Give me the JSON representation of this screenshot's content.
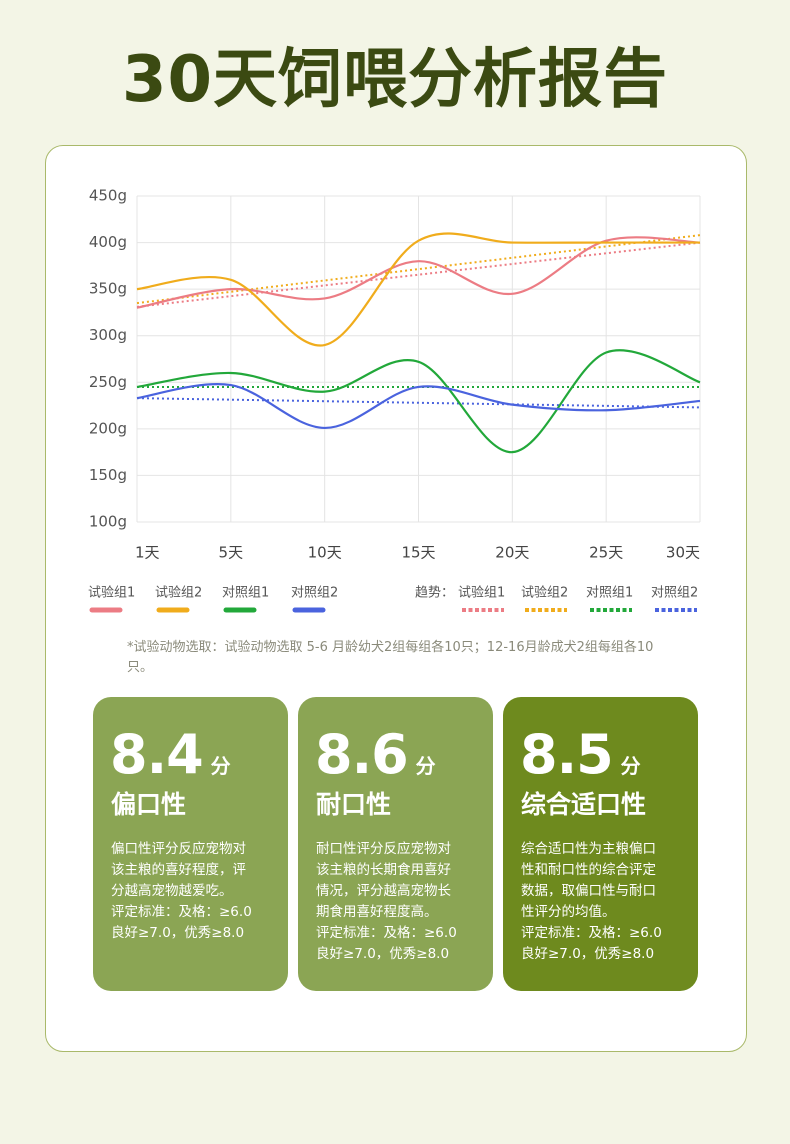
{
  "title": "30天饲喂分析报告",
  "chart_data": {
    "type": "line",
    "categories": [
      "1天",
      "5天",
      "10天",
      "15天",
      "20天",
      "25天",
      "30天"
    ],
    "ylim": [
      100,
      450
    ],
    "yticks": [
      {
        "value": 100,
        "label": "100g"
      },
      {
        "value": 150,
        "label": "150g"
      },
      {
        "value": 200,
        "label": "200g"
      },
      {
        "value": 250,
        "label": "250g"
      },
      {
        "value": 300,
        "label": "300g"
      },
      {
        "value": 350,
        "label": "350g"
      },
      {
        "value": 400,
        "label": "400g"
      },
      {
        "value": 450,
        "label": "450g"
      }
    ],
    "grid": true,
    "series": [
      {
        "name": "试验组1",
        "color": "#ec7c84",
        "values": [
          330,
          350,
          340,
          380,
          345,
          402,
          400
        ]
      },
      {
        "name": "试验组2",
        "color": "#f0ac1c",
        "values": [
          350,
          360,
          290,
          402,
          400,
          400,
          400
        ]
      },
      {
        "name": "对照组1",
        "color": "#22a83a",
        "values": [
          245,
          260,
          240,
          272,
          175,
          282,
          250
        ]
      },
      {
        "name": "对照组2",
        "color": "#4a63de",
        "values": [
          233,
          247,
          201,
          245,
          226,
          220,
          230
        ]
      }
    ],
    "trend_label": "趋势：",
    "trends": [
      {
        "name": "试验组1",
        "color": "#ec7c84",
        "values": [
          331,
          400
        ]
      },
      {
        "name": "试验组2",
        "color": "#f0ac1c",
        "values": [
          335,
          408
        ]
      },
      {
        "name": "对照组1",
        "color": "#22a83a",
        "values": [
          245,
          245
        ]
      },
      {
        "name": "对照组2",
        "color": "#4a63de",
        "values": [
          233,
          223
        ]
      }
    ]
  },
  "note": "*试验动物选取：试验动物选取 5-6 月龄幼犬2组每组各10只；12-16月龄成犬2组每组各10只。",
  "cards": [
    {
      "score": 8.4,
      "unit": "分",
      "name": "偏口性",
      "color": "#8ba554",
      "desc": [
        "偏口性评分反应宠物对",
        "该主粮的喜好程度，评",
        "分越高宠物越爱吃。",
        "评定标准：及格：≥6.0",
        "良好≥7.0，优秀≥8.0"
      ]
    },
    {
      "score": 8.6,
      "unit": "分",
      "name": "耐口性",
      "color": "#8ba554",
      "desc": [
        "耐口性评分反应宠物对",
        "该主粮的长期食用喜好",
        "情况，评分越高宠物长",
        "期食用喜好程度高。",
        "评定标准：及格：≥6.0",
        "良好≥7.0，优秀≥8.0"
      ]
    },
    {
      "score": 8.5,
      "unit": "分",
      "name": "综合适口性",
      "color": "#6e8a1e",
      "desc": [
        "综合适口性为主粮偏口",
        "性和耐口性的综合评定",
        "数据，取偏口性与耐口",
        "性评分的均值。",
        "评定标准：及格：≥6.0",
        "良好≥7.0，优秀≥8.0"
      ]
    }
  ]
}
